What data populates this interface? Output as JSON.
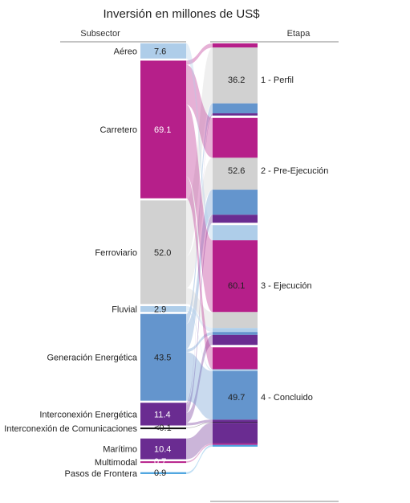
{
  "chart_data": {
    "type": "sankey",
    "title": "Inversión en millones de US$",
    "left_header": "Subsector",
    "right_header": "Etapa",
    "sources": [
      {
        "name": "Aéreo",
        "value_label": "7.6",
        "value": 7.6,
        "color": "#aecde9"
      },
      {
        "name": "Carretero",
        "value_label": "69.1",
        "value": 69.1,
        "color": "#b61f8a"
      },
      {
        "name": "Ferroviario",
        "value_label": "52.0",
        "value": 52.0,
        "color": "#d1d1d1"
      },
      {
        "name": "Fluvial",
        "value_label": "2.9",
        "value": 2.9,
        "color": "#aecde9"
      },
      {
        "name": "Generación Energética",
        "value_label": "43.5",
        "value": 43.5,
        "color": "#6495cd"
      },
      {
        "name": "Interconexión Energética",
        "value_label": "11.4",
        "value": 11.4,
        "color": "#6a2c91"
      },
      {
        "name": "Interconexión de Comunicaciones",
        "value_label": "<0.1",
        "value": 0.05,
        "color": "#111111"
      },
      {
        "name": "Marítimo",
        "value_label": "10.4",
        "value": 10.4,
        "color": "#6a2c91"
      },
      {
        "name": "Multimodal",
        "value_label": "0.7",
        "value": 0.7,
        "color": "#b61f8a"
      },
      {
        "name": "Pasos de Frontera",
        "value_label": "0.9",
        "value": 0.9,
        "color": "#4aa3df"
      }
    ],
    "targets": [
      {
        "name": "1 - Perfil",
        "value_label": "36.2",
        "value": 36.2,
        "segments": [
          {
            "source": "Carretero",
            "value": 2.1
          },
          {
            "source": "Ferroviario",
            "value": 28.0
          },
          {
            "source": "Generación Energética",
            "value": 5.0
          },
          {
            "source": "Interconexión Energética",
            "value": 1.1
          }
        ]
      },
      {
        "name": "2 - Pre-Ejecución",
        "value_label": "52.6",
        "value": 52.6,
        "segments": [
          {
            "source": "Carretero",
            "value": 20.0
          },
          {
            "source": "Ferroviario",
            "value": 16.0
          },
          {
            "source": "Generación Energética",
            "value": 12.6
          },
          {
            "source": "Interconexión Energética",
            "value": 4.0
          }
        ]
      },
      {
        "name": "3 - Ejecución",
        "value_label": "60.1",
        "value": 60.1,
        "segments": [
          {
            "source": "Aéreo",
            "value": 7.6
          },
          {
            "source": "Carretero",
            "value": 36.0
          },
          {
            "source": "Ferroviario",
            "value": 8.0
          },
          {
            "source": "Fluvial",
            "value": 2.0
          },
          {
            "source": "Generación Energética",
            "value": 1.5
          },
          {
            "source": "Interconexión Energética",
            "value": 5.0
          }
        ]
      },
      {
        "name": "4 - Concluido",
        "value_label": "49.7",
        "value": 49.7,
        "segments": [
          {
            "source": "Carretero",
            "value": 11.0
          },
          {
            "source": "Fluvial",
            "value": 0.9
          },
          {
            "source": "Generación Energética",
            "value": 24.4
          },
          {
            "source": "Interconexión Energética",
            "value": 1.3
          },
          {
            "source": "Interconexión de Comunicaciones",
            "value": 0.05
          },
          {
            "source": "Marítimo",
            "value": 10.4
          },
          {
            "source": "Multimodal",
            "value": 0.7
          },
          {
            "source": "Pasos de Frontera",
            "value": 0.9
          }
        ]
      }
    ]
  }
}
